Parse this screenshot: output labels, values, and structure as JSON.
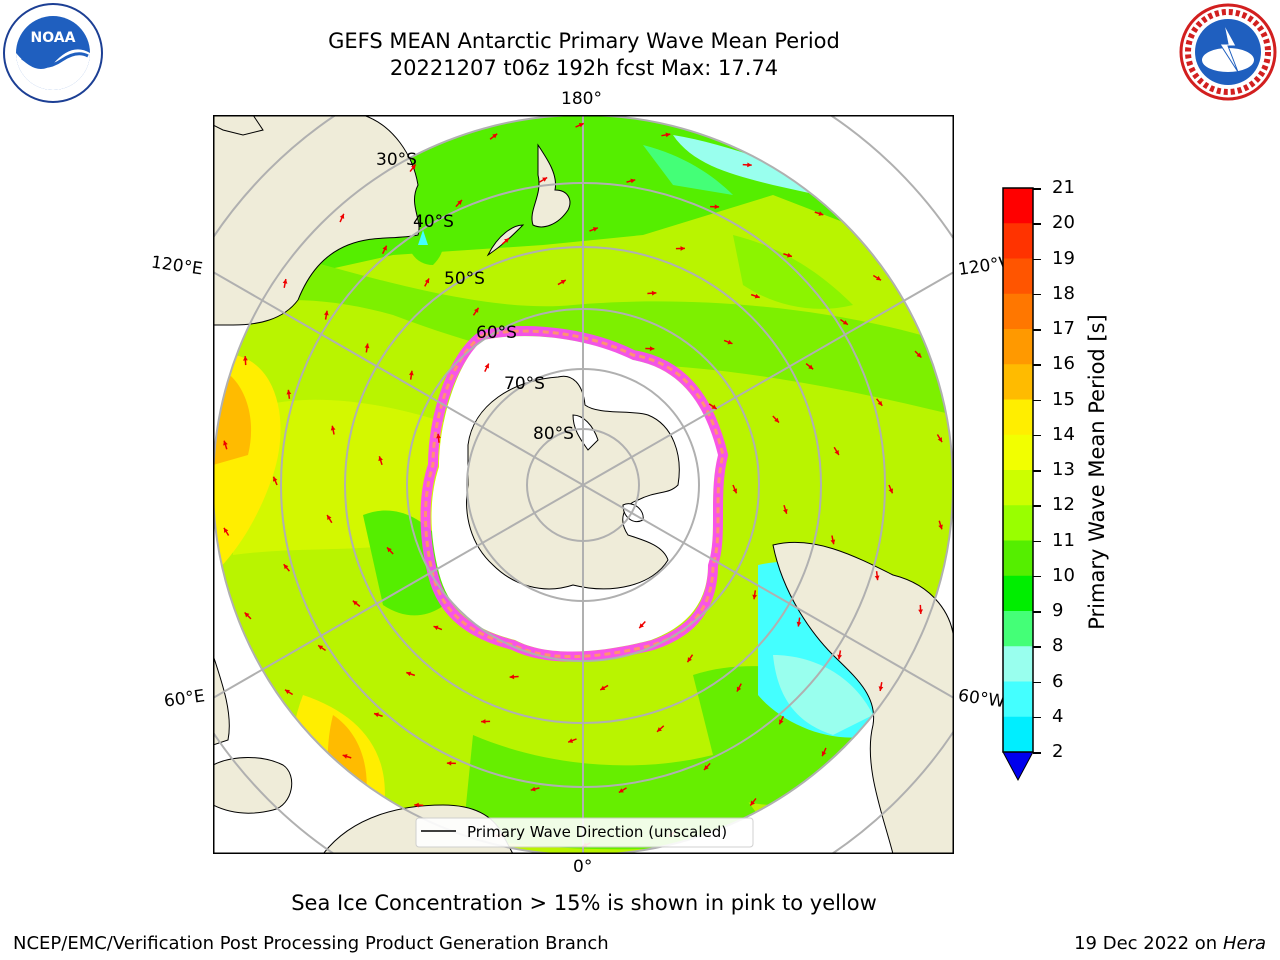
{
  "title": {
    "line1": "GEFS MEAN Antarctic Primary Wave Mean Period",
    "line2": "20221207 t06z 192h fcst   Max: 17.74"
  },
  "map": {
    "latitude_labels": [
      "30°S",
      "40°S",
      "50°S",
      "60°S",
      "70°S",
      "80°S"
    ],
    "longitude_labels": {
      "top": "180°",
      "bottom": "0°",
      "left_upper": "120°E",
      "left_lower": "60°E",
      "right_upper": "120°W",
      "right_lower": "60°W"
    },
    "legend": "Primary Wave Direction (unscaled)",
    "land_color": "#efecd9",
    "ice_color": "#ffffff"
  },
  "colorbar": {
    "label": "Primary Wave Mean Period [s]",
    "ticks": [
      "21",
      "20",
      "19",
      "18",
      "17",
      "16",
      "15",
      "14",
      "13",
      "12",
      "11",
      "10",
      "9",
      "8",
      "6",
      "4",
      "2"
    ],
    "colors": [
      "#ff0000",
      "#ff3300",
      "#ff5500",
      "#ff7700",
      "#ff9900",
      "#ffbb00",
      "#ffee00",
      "#f2ff00",
      "#ccff00",
      "#99ff00",
      "#55ee00",
      "#00ee00",
      "#44ff77",
      "#99ffee",
      "#44ffff",
      "#00eeff",
      "#0099ff",
      "#0044ff",
      "#0000ee"
    ]
  },
  "subtitle": "Sea Ice Concentration > 15% is shown in pink to yellow",
  "footer": {
    "left": "NCEP/EMC/Verification Post Processing Product Generation Branch",
    "right_date": "19 Dec 2022 on",
    "right_host": "Hera"
  }
}
